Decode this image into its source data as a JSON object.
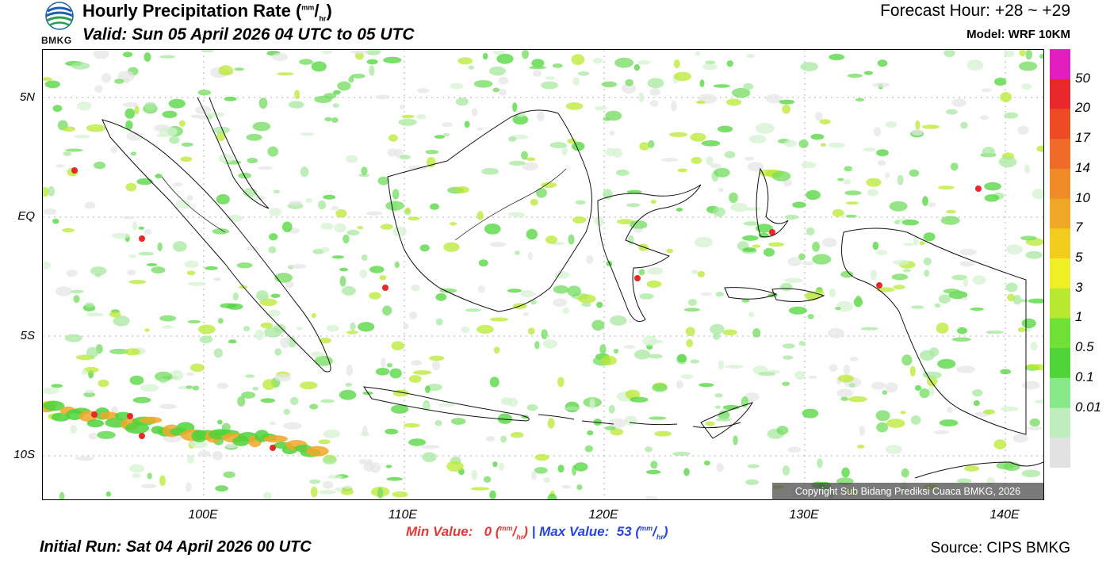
{
  "header": {
    "logo_text": "BMKG",
    "title": "Hourly Precipitation Rate",
    "unit_num": "mm",
    "unit_den": "hr",
    "valid": "Valid: Sun 05 April 2026 04 UTC to 05 UTC",
    "forecast_hour": "Forecast Hour: +28 ~ +29",
    "model": "Model: WRF 10KM"
  },
  "map": {
    "lat_labels": [
      "5N",
      "EQ",
      "5S",
      "10S"
    ],
    "lon_labels": [
      "100E",
      "110E",
      "120E",
      "130E",
      "140E"
    ],
    "copyright": "Copyright Sub Bidang Prediksi Cuaca BMKG, 2026"
  },
  "colorbar": {
    "labels": [
      "50",
      "20",
      "17",
      "14",
      "10",
      "7",
      "5",
      "3",
      "1",
      "0.5",
      "0.1",
      "0.01"
    ],
    "colors": [
      "#e11fbf",
      "#e8282a",
      "#ec4b24",
      "#ef6b27",
      "#f08b2a",
      "#f0a728",
      "#f3cd1d",
      "#f0ee26",
      "#b8e830",
      "#6fe035",
      "#50d43a",
      "#88e888",
      "#bdeebb",
      "#e2e2e2"
    ]
  },
  "footer": {
    "min_label": "Min Value:",
    "min_value": "0",
    "max_label": "Max Value:",
    "max_value": "53",
    "separator": "|",
    "initial_run": "Initial Run: Sat 04 April 2026 00 UTC",
    "source": "Source: CIPS BMKG"
  }
}
